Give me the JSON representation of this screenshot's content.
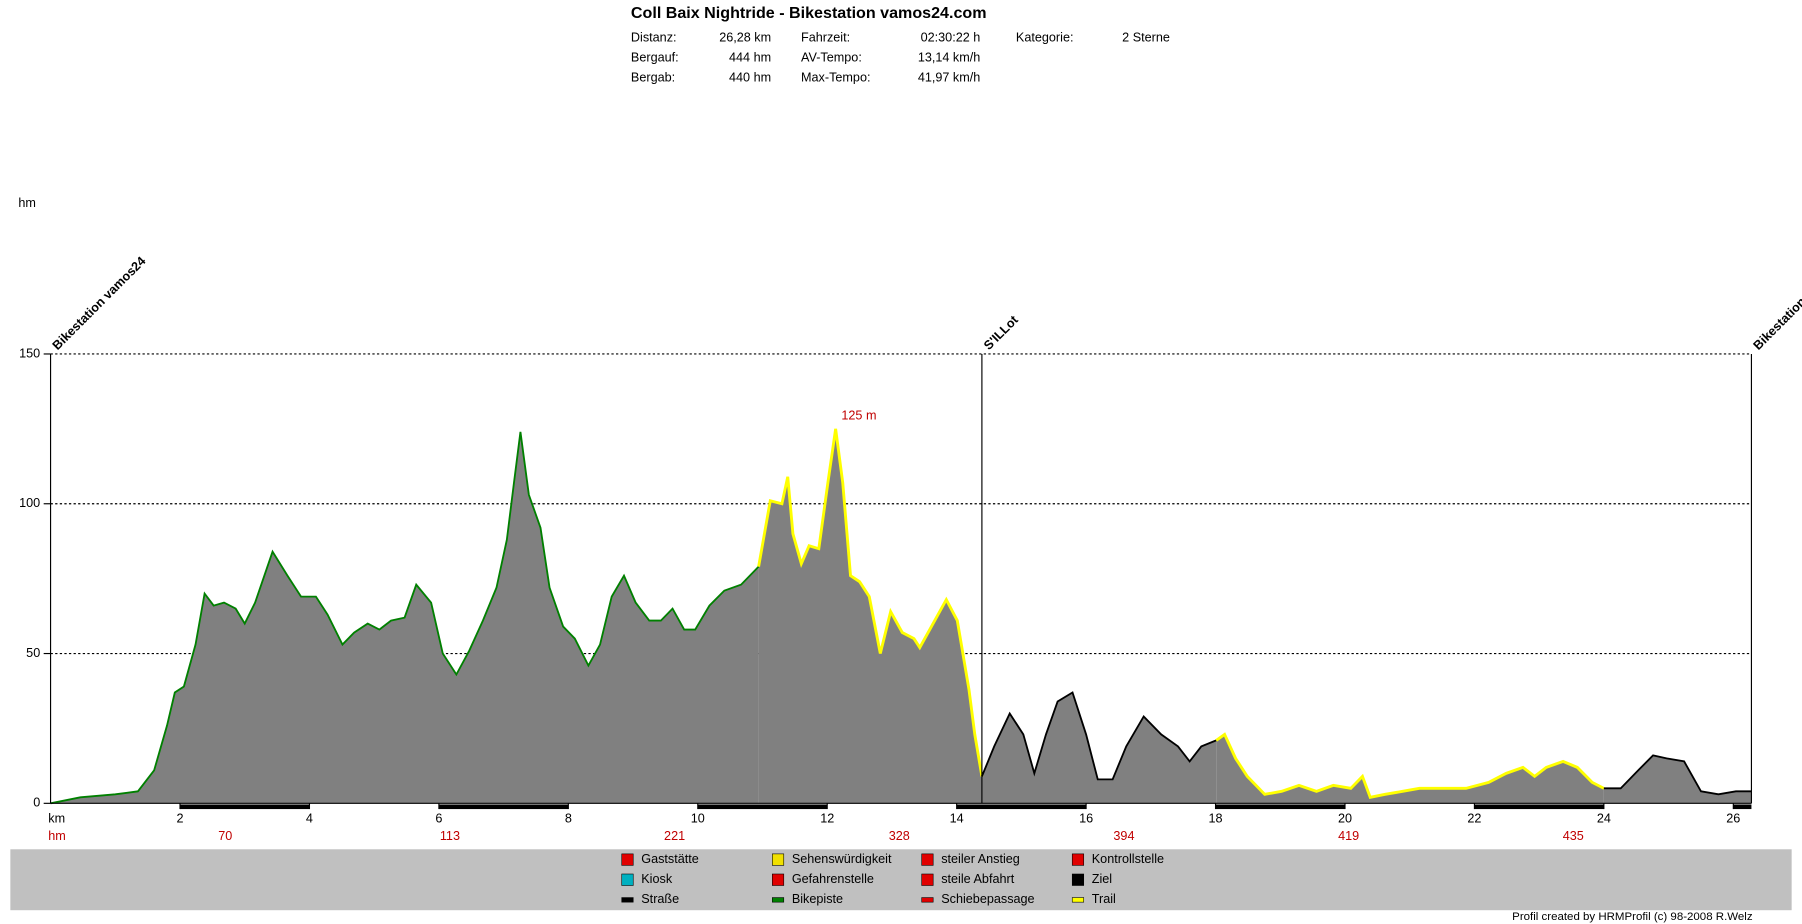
{
  "chart_data": {
    "type": "area",
    "title": "Coll Baix Nightride - Bikestation vamos24.com",
    "stats": [
      [
        {
          "label": "Distanz:",
          "value": "26,28 km"
        },
        {
          "label": "Bergauf:",
          "value": "444 hm"
        },
        {
          "label": "Bergab:",
          "value": "440 hm"
        }
      ],
      [
        {
          "label": "Fahrzeit:",
          "value": "02:30:22 h"
        },
        {
          "label": "AV-Tempo:",
          "value": "13,14 km/h"
        },
        {
          "label": "Max-Tempo:",
          "value": "41,97 km/h"
        }
      ],
      [
        {
          "label": "Kategorie:",
          "value": "2 Sterne"
        }
      ]
    ],
    "y_label": "hm",
    "x_label": "km",
    "xlim": [
      0,
      26.28
    ],
    "ylim": [
      0,
      150
    ],
    "xticks": [
      2,
      4,
      6,
      8,
      10,
      12,
      14,
      16,
      18,
      20,
      22,
      24,
      26
    ],
    "yticks": [
      0,
      50,
      100,
      150
    ],
    "grid": true,
    "fill_color": "#808080",
    "series": [
      {
        "color": "#008000",
        "x": [
          0,
          0.46,
          1.0,
          1.35,
          1.6,
          1.8,
          1.92,
          2.06,
          2.24,
          2.38,
          2.52,
          2.68,
          2.86,
          3.0,
          3.16,
          3.43,
          3.66,
          3.87,
          4.1,
          4.28,
          4.51,
          4.69,
          4.9,
          5.08,
          5.26,
          5.47,
          5.65,
          5.88,
          6.06,
          6.27,
          6.47,
          6.68,
          6.89,
          7.05,
          7.16,
          7.26,
          7.39,
          7.57,
          7.71,
          7.92,
          8.1,
          8.31,
          8.49,
          8.67,
          8.86,
          9.04,
          9.25,
          9.43,
          9.61,
          9.79,
          9.96,
          10.18,
          10.41,
          10.67,
          10.94
        ],
        "values": [
          0,
          2,
          3,
          4,
          11,
          26,
          37,
          39,
          53,
          70,
          66,
          67,
          65,
          60,
          67,
          84,
          76,
          69,
          69,
          63,
          53,
          57,
          60,
          58,
          61,
          62,
          73,
          67,
          50,
          43,
          51,
          61,
          72,
          88,
          107,
          124,
          103,
          92,
          72,
          59,
          55,
          46,
          53,
          69,
          76,
          67,
          61,
          61,
          65,
          58,
          58,
          66,
          71,
          73,
          79
        ]
      },
      {
        "color": "#ffff00",
        "x": [
          10.94,
          11.12,
          11.3,
          11.39,
          11.47,
          11.6,
          11.72,
          11.87,
          12.01,
          12.13,
          12.24,
          12.36,
          12.5,
          12.65,
          12.82,
          12.98,
          13.16,
          13.34,
          13.43,
          13.61,
          13.84,
          14.01,
          14.19,
          14.28,
          14.39
        ],
        "values": [
          79,
          101,
          100,
          109,
          90,
          80,
          86,
          85,
          107,
          125,
          107,
          76,
          74,
          69,
          50,
          64,
          57,
          55,
          52,
          59,
          68,
          61,
          38,
          23,
          9
        ]
      },
      {
        "color": "#000000",
        "x": [
          14.39,
          14.58,
          14.82,
          15.03,
          15.2,
          15.38,
          15.56,
          15.79,
          16.0,
          16.18,
          16.41,
          16.62,
          16.89,
          17.16,
          17.42,
          17.6,
          17.78,
          18.01
        ],
        "values": [
          9,
          19,
          30,
          23,
          10,
          23,
          34,
          37,
          23,
          8,
          8,
          19,
          29,
          23,
          19,
          14,
          19,
          21
        ]
      },
      {
        "color": "#ffff00",
        "x": [
          18.01,
          18.14,
          18.31,
          18.49,
          18.76,
          19.02,
          19.29,
          19.56,
          19.82,
          20.09,
          20.27,
          20.39,
          20.62,
          20.89,
          21.15,
          21.51,
          21.87,
          22.22,
          22.49,
          22.75,
          22.93,
          23.11,
          23.37,
          23.59,
          23.82,
          24.0
        ],
        "values": [
          21,
          23,
          15,
          9,
          3,
          4,
          6,
          4,
          6,
          5,
          9,
          2,
          3,
          4,
          5,
          5,
          5,
          7,
          10,
          12,
          9,
          12,
          14,
          12,
          7,
          5
        ]
      },
      {
        "color": "#000000",
        "x": [
          24.0,
          24.26,
          24.53,
          24.76,
          24.97,
          25.24,
          25.5,
          25.77,
          26.04,
          26.28
        ],
        "values": [
          5,
          5,
          11,
          16,
          15,
          14,
          4,
          3,
          4,
          4
        ]
      }
    ],
    "waypoints": [
      {
        "label": "Bikestation vamos24",
        "x": 0
      },
      {
        "label": "S'ILLot",
        "x": 14.39
      },
      {
        "label": "Bikestation",
        "x": 26.28
      }
    ],
    "annotation": {
      "label": "125 m",
      "x": 12.13,
      "y": 125
    },
    "climb_row": {
      "label": "hm",
      "values": [
        70,
        113,
        221,
        328,
        394,
        419,
        435
      ]
    },
    "legend": [
      {
        "label": "Gaststätte",
        "color": "#e00000"
      },
      {
        "label": "Sehenswürdigkeit",
        "color": "#f0e000"
      },
      {
        "label": "steiler Anstieg",
        "color": "#e00000"
      },
      {
        "label": "Kontrollstelle",
        "color": "#e00000"
      },
      {
        "label": "Kiosk",
        "color": "#00b0c0"
      },
      {
        "label": "Gefahrenstelle",
        "color": "#e00000"
      },
      {
        "label": "steile Abfahrt",
        "color": "#e00000"
      },
      {
        "label": "Ziel",
        "color": "#000000"
      },
      {
        "label": "Straße",
        "color": "#000000"
      },
      {
        "label": "Bikepiste",
        "color": "#008000"
      },
      {
        "label": "Schiebepassage",
        "color": "#e00000"
      },
      {
        "label": "Trail",
        "color": "#ffff00"
      }
    ],
    "footer": "Profil created by HRMProfil (c) 98-2008 R.Welz"
  }
}
